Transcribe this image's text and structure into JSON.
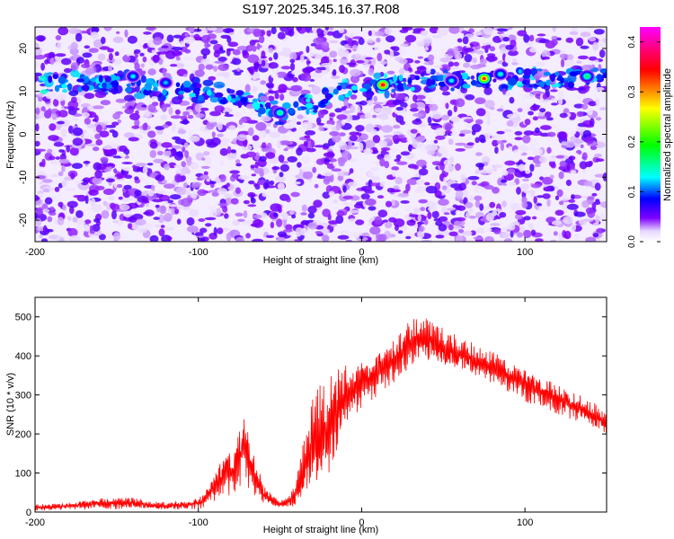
{
  "title": "S197.2025.345.16.37.R08",
  "chart_data": [
    {
      "type": "heatmap",
      "xlabel": "Height of straight line (km)",
      "ylabel": "Frequency (Hz)",
      "xlim": [
        -200,
        150
      ],
      "ylim": [
        -25,
        25
      ],
      "xticks": [
        -200,
        -100,
        0,
        100
      ],
      "yticks": [
        -20,
        -10,
        0,
        10,
        20
      ],
      "colorbar": {
        "label": "Normalized spectral amplitude",
        "range": [
          0,
          0.43
        ],
        "ticks": [
          0.0,
          0.1,
          0.2,
          0.3,
          0.4
        ],
        "colors": [
          "#ffffff",
          "#e6d6ff",
          "#7f00ff",
          "#0000ff",
          "#00ffff",
          "#00ff00",
          "#ffff00",
          "#ff0000",
          "#ff00ff"
        ]
      },
      "ridge": [
        {
          "x": -200,
          "y": 12
        },
        {
          "x": -150,
          "y": 12
        },
        {
          "x": -100,
          "y": 10
        },
        {
          "x": -70,
          "y": 8
        },
        {
          "x": -50,
          "y": 5
        },
        {
          "x": -30,
          "y": 7
        },
        {
          "x": -10,
          "y": 10
        },
        {
          "x": 10,
          "y": 11.5
        },
        {
          "x": 40,
          "y": 12
        },
        {
          "x": 75,
          "y": 13
        },
        {
          "x": 140,
          "y": 13.5
        }
      ],
      "hotspots": [
        {
          "x": -50,
          "y": 5,
          "amplitude": 0.16
        },
        {
          "x": 13,
          "y": 11.5,
          "amplitude": 0.36
        },
        {
          "x": 75,
          "y": 13,
          "amplitude": 0.33
        },
        {
          "x": 138,
          "y": 13.5,
          "amplitude": 0.17
        },
        {
          "x": -140,
          "y": 13.5,
          "amplitude": 0.13
        },
        {
          "x": -120,
          "y": 12,
          "amplitude": 0.12
        },
        {
          "x": 85,
          "y": 14,
          "amplitude": 0.14
        },
        {
          "x": 55,
          "y": 12.5,
          "amplitude": 0.13
        }
      ]
    },
    {
      "type": "line",
      "xlabel": "Height of straight line (km)",
      "ylabel": "SNR (10 * v/v)",
      "xlim": [
        -200,
        150
      ],
      "ylim": [
        0,
        550
      ],
      "xticks": [
        -200,
        -100,
        0,
        100
      ],
      "yticks": [
        0,
        100,
        200,
        300,
        400,
        500
      ],
      "color": "#ff0000",
      "series": [
        {
          "x": [
            -200,
            -180,
            -160,
            -140,
            -120,
            -100,
            -95,
            -90,
            -85,
            -80,
            -75,
            -72,
            -70,
            -65,
            -60,
            -55,
            -50,
            -45,
            -40,
            -35,
            -30,
            -25,
            -20,
            -15,
            -10,
            -5,
            0,
            5,
            10,
            15,
            20,
            25,
            30,
            35,
            40,
            50,
            60,
            70,
            80,
            90,
            100,
            110,
            120,
            130,
            140,
            150
          ],
          "values": [
            12,
            15,
            22,
            22,
            15,
            22,
            38,
            70,
            95,
            105,
            150,
            170,
            145,
            90,
            45,
            30,
            20,
            25,
            45,
            110,
            180,
            190,
            220,
            270,
            300,
            310,
            330,
            345,
            360,
            370,
            390,
            410,
            440,
            445,
            440,
            420,
            400,
            385,
            370,
            350,
            330,
            310,
            290,
            270,
            250,
            225
          ],
          "amplitude": [
            8,
            10,
            15,
            15,
            10,
            15,
            25,
            50,
            60,
            70,
            90,
            90,
            80,
            50,
            25,
            15,
            10,
            15,
            40,
            80,
            120,
            140,
            130,
            110,
            90,
            70,
            60,
            60,
            60,
            60,
            60,
            60,
            70,
            55,
            55,
            50,
            45,
            45,
            45,
            45,
            45,
            42,
            40,
            38,
            35,
            32
          ]
        }
      ]
    }
  ]
}
